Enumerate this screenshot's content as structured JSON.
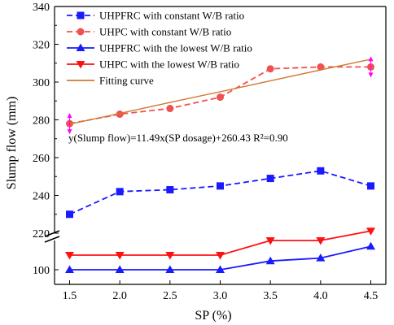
{
  "chart_data": {
    "type": "line",
    "xlabel": "SP (%)",
    "ylabel": "Slump flow (mm)",
    "x": [
      1.5,
      2.0,
      2.5,
      3.0,
      3.5,
      4.0,
      4.5
    ],
    "x_ticks": [
      "1.5",
      "2.0",
      "2.5",
      "3.0",
      "3.5",
      "4.0",
      "4.5"
    ],
    "y_axis_break": true,
    "y_upper_range": [
      220,
      340
    ],
    "y_upper_ticks": [
      "220",
      "240",
      "260",
      "280",
      "300",
      "320",
      "340"
    ],
    "y_lower_range": [
      80,
      140
    ],
    "y_lower_ticks": [
      "100"
    ],
    "grid": false,
    "legend_position": "top-left",
    "series": [
      {
        "name": "UHPFRC with constant W/B ratio",
        "values": [
          230,
          242,
          243,
          245,
          249,
          253,
          245
        ],
        "color": "#1a1aff",
        "marker": "square",
        "line": "dashed"
      },
      {
        "name": "UHPC with constant W/B ratio",
        "values": [
          278,
          283,
          286,
          292,
          307,
          308,
          308
        ],
        "color": "#f05050",
        "marker": "circle",
        "line": "dashed"
      },
      {
        "name": "UHPFRC with the lowest W/B ratio",
        "values": [
          100,
          100,
          100,
          100,
          112,
          116,
          132
        ],
        "color": "#1a1aff",
        "marker": "triangle-up",
        "line": "solid"
      },
      {
        "name": "UHPC with the lowest W/B ratio",
        "values": [
          120,
          120,
          120,
          120,
          140,
          140,
          153
        ],
        "color": "#ff1010",
        "marker": "triangle-down",
        "line": "solid"
      },
      {
        "name": "Fitting curve",
        "values": [
          277.7,
          283.4,
          289.2,
          294.9,
          300.7,
          306.4,
          312.1
        ],
        "color": "#d07830",
        "marker": "none",
        "line": "solid"
      }
    ],
    "fit_equation": "y(Slump flow)=11.49x(SP dosage)+260.43   R²=0.90",
    "error_markers": [
      {
        "x": 1.5,
        "y": 278,
        "color": "#ff00ff"
      },
      {
        "x": 4.5,
        "y": 308,
        "color": "#ff00ff"
      }
    ]
  }
}
